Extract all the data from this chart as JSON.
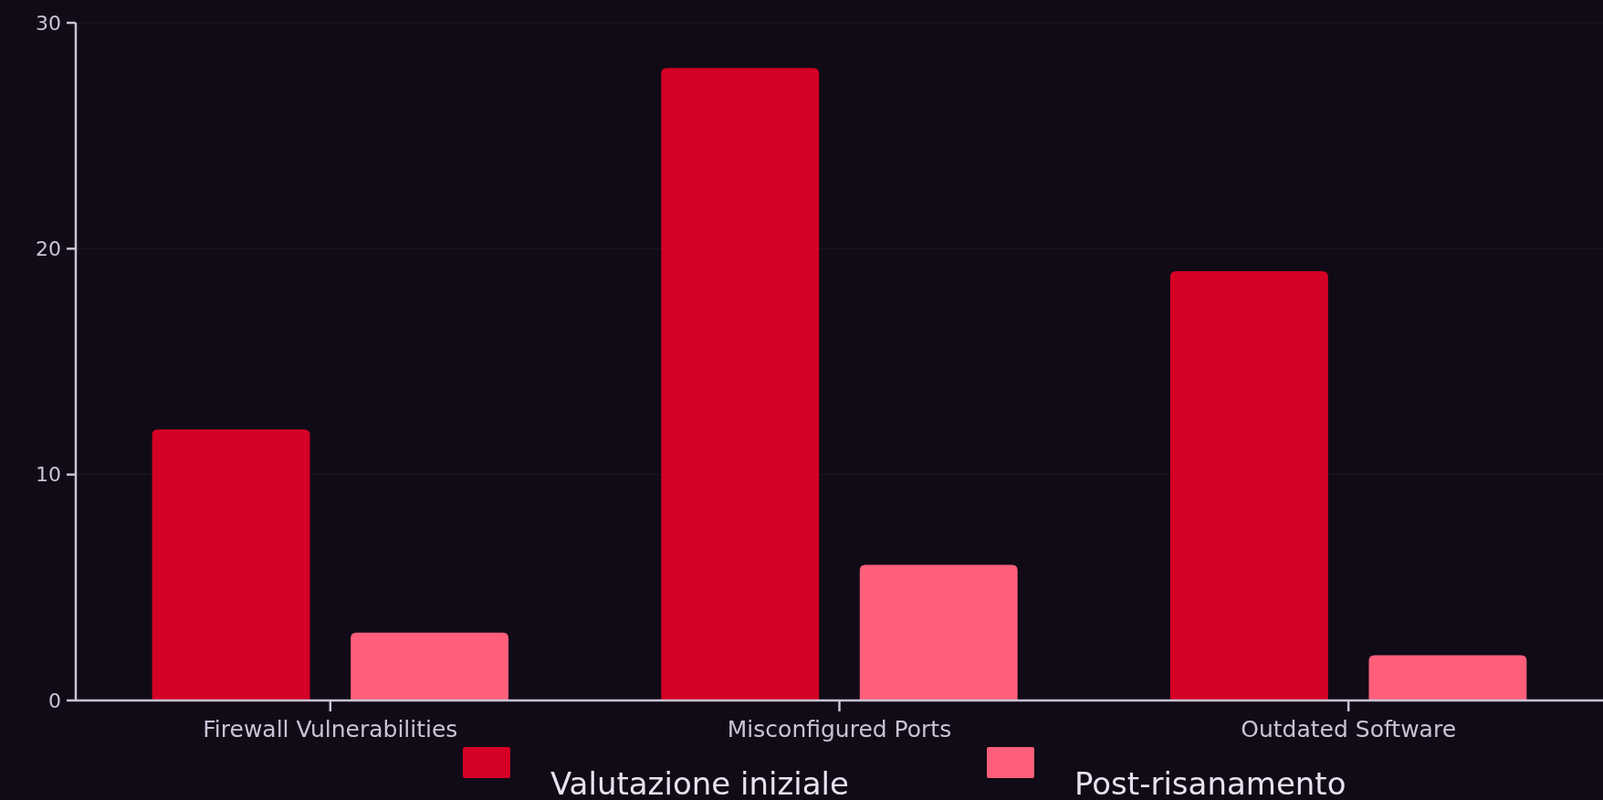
{
  "chart_data": {
    "type": "bar",
    "categories": [
      "Firewall Vulnerabilities",
      "Misconfigured Ports",
      "Outdated Software"
    ],
    "series": [
      {
        "name": "Valutazione iniziale",
        "color": "#d50025",
        "values": [
          12,
          28,
          19
        ]
      },
      {
        "name": "Post-risanamento",
        "color": "#ff5f7a",
        "values": [
          3,
          6,
          2
        ]
      }
    ],
    "ylim": [
      0,
      30
    ],
    "yticks": [
      0,
      10,
      20,
      30
    ],
    "grid": "y",
    "legend": "bottom"
  }
}
